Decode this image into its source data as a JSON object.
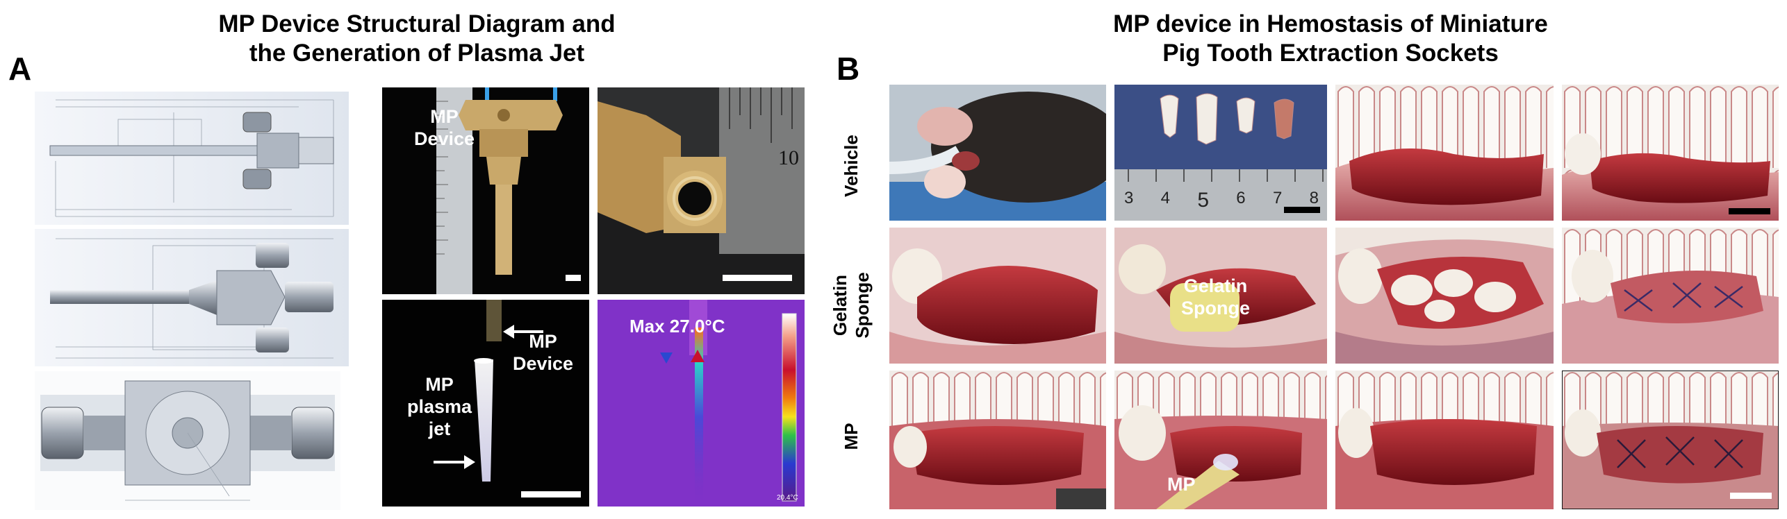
{
  "panel_a": {
    "letter": "A",
    "title_line1": "MP Device Structural Diagram and",
    "title_line2": "the Generation of Plasma Jet",
    "labels": {
      "mp_device_photo": [
        "MP",
        "Device"
      ],
      "mp_device_jet": [
        "MP",
        "Device"
      ],
      "mp_plasma_jet": [
        "MP",
        "plasma",
        "jet"
      ],
      "ruler_number": "10",
      "max_temp": "Max 27.0°C",
      "colorbar_bottom": "20.4°C"
    }
  },
  "panel_b": {
    "letter": "B",
    "title_line1": "MP device in Hemostasis of Miniature",
    "title_line2": "Pig Tooth Extraction Sockets",
    "rows": [
      {
        "label": [
          "Vehicle"
        ]
      },
      {
        "label": [
          "Gelatin",
          "Sponge"
        ]
      },
      {
        "label": [
          "MP"
        ]
      }
    ],
    "labels": {
      "gelatin_sponge": [
        "Gelatin",
        "Sponge"
      ],
      "mp_tip": "MP",
      "ruler_numbers": [
        "3",
        "4",
        "5",
        "6",
        "7",
        "8"
      ]
    }
  },
  "colors": {
    "tissue_red": "#9e1c24",
    "gingiva_pink": "#d78a8c",
    "teeth_white": "#efe9e4",
    "thermal_purple": "#7b2fc4",
    "brass": "#c9a86a"
  }
}
